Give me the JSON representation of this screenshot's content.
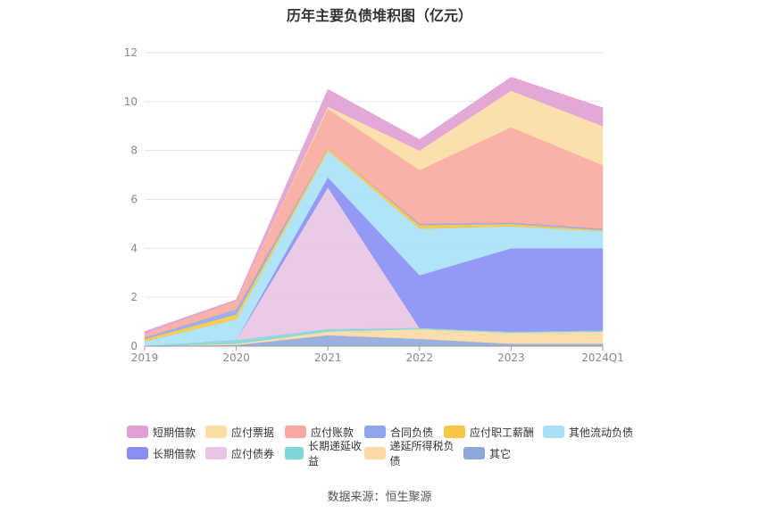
{
  "title": "历年主要负债堆积图（亿元）",
  "source": "数据来源：恒生聚源",
  "chart_data": {
    "type": "area",
    "stacked": true,
    "title": "历年主要负债堆积图（亿元）",
    "categories": [
      "2019",
      "2020",
      "2021",
      "2022",
      "2023",
      "2024Q1"
    ],
    "ylim": [
      0,
      12
    ],
    "yticks": [
      "0",
      "2",
      "4",
      "6",
      "8",
      "10",
      "12"
    ],
    "grid": true,
    "legend_position": "bottom",
    "series": [
      {
        "name": "其它",
        "color": "#8fa8dc",
        "values": [
          0.0,
          0.05,
          0.45,
          0.3,
          0.1,
          0.1
        ]
      },
      {
        "name": "递延所得税负债",
        "color": "#fcd9a4",
        "values": [
          0.0,
          0.05,
          0.15,
          0.4,
          0.45,
          0.5
        ]
      },
      {
        "name": "长期递延收益",
        "color": "#7fd6d6",
        "values": [
          0.0,
          0.15,
          0.1,
          0.05,
          0.05,
          0.05
        ]
      },
      {
        "name": "应付债券",
        "color": "#e8c5e3",
        "values": [
          0.0,
          0.0,
          5.8,
          0.0,
          0.0,
          0.0
        ]
      },
      {
        "name": "长期借款",
        "color": "#8a8ef5",
        "values": [
          0.0,
          0.0,
          0.4,
          2.15,
          3.4,
          3.35
        ]
      },
      {
        "name": "其他流动负债",
        "color": "#a9e0f8",
        "values": [
          0.2,
          0.85,
          1.1,
          1.9,
          0.9,
          0.7
        ]
      },
      {
        "name": "应付职工薪酬",
        "color": "#f8c646",
        "values": [
          0.1,
          0.2,
          0.1,
          0.15,
          0.1,
          0.05
        ]
      },
      {
        "name": "合同负债",
        "color": "#8ea6f0",
        "values": [
          0.05,
          0.2,
          0.0,
          0.05,
          0.05,
          0.05
        ]
      },
      {
        "name": "应付账款",
        "color": "#f8a89e",
        "values": [
          0.15,
          0.35,
          1.6,
          2.2,
          3.9,
          2.6
        ]
      },
      {
        "name": "应付票据",
        "color": "#fcdca5",
        "values": [
          0.0,
          0.0,
          0.1,
          0.8,
          1.5,
          1.6
        ]
      },
      {
        "name": "短期借款",
        "color": "#e0a0d2",
        "values": [
          0.1,
          0.05,
          0.7,
          0.45,
          0.55,
          0.75
        ]
      }
    ],
    "legend_order": [
      [
        "短期借款",
        "应付票据",
        "应付账款",
        "合同负债",
        "应付职工薪酬",
        "其他流动负债"
      ],
      [
        "长期借款",
        "应付债券",
        "长期递延收益",
        "递延所得税负债",
        "其它"
      ]
    ]
  }
}
